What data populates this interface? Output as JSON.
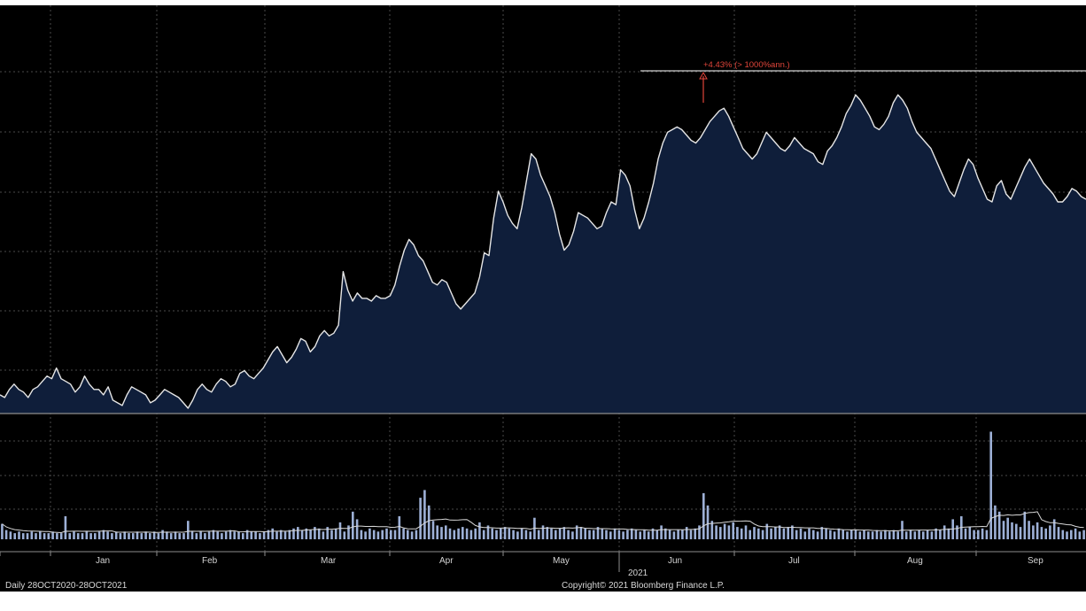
{
  "chart_data": {
    "type": "line",
    "period": "Daily 28OCT2020-28OCT2021",
    "copyright": "Copyright© 2021 Bloomberg Finance L.P.",
    "year_label": "2021",
    "month_ticks": [
      "Jan",
      "Feb",
      "Mar",
      "Apr",
      "May",
      "Jun",
      "Jul",
      "Aug",
      "Sep"
    ],
    "annotation": "+4.43% (> 1000%ann.)",
    "grid": true,
    "colors": {
      "background": "#000000",
      "area_fill": "#0f1e3a",
      "line": "#e6e6e6",
      "volume_bar": "#9db0d6",
      "annotation": "#e0453a",
      "grid": "#4a4a4a"
    },
    "price_series": [
      0.06,
      0.05,
      0.08,
      0.1,
      0.08,
      0.07,
      0.05,
      0.08,
      0.09,
      0.11,
      0.13,
      0.12,
      0.16,
      0.12,
      0.11,
      0.1,
      0.07,
      0.09,
      0.13,
      0.1,
      0.08,
      0.08,
      0.06,
      0.09,
      0.04,
      0.03,
      0.02,
      0.06,
      0.09,
      0.08,
      0.07,
      0.06,
      0.03,
      0.04,
      0.06,
      0.08,
      0.07,
      0.06,
      0.05,
      0.03,
      0.01,
      0.04,
      0.08,
      0.1,
      0.08,
      0.07,
      0.1,
      0.12,
      0.11,
      0.09,
      0.1,
      0.14,
      0.15,
      0.13,
      0.12,
      0.14,
      0.16,
      0.19,
      0.22,
      0.24,
      0.21,
      0.18,
      0.2,
      0.23,
      0.27,
      0.26,
      0.22,
      0.24,
      0.28,
      0.3,
      0.28,
      0.29,
      0.32,
      0.52,
      0.45,
      0.41,
      0.44,
      0.42,
      0.42,
      0.41,
      0.43,
      0.42,
      0.42,
      0.43,
      0.47,
      0.54,
      0.6,
      0.64,
      0.62,
      0.58,
      0.56,
      0.52,
      0.48,
      0.47,
      0.49,
      0.48,
      0.44,
      0.4,
      0.38,
      0.4,
      0.42,
      0.44,
      0.5,
      0.59,
      0.58,
      0.72,
      0.82,
      0.78,
      0.73,
      0.7,
      0.68,
      0.76,
      0.86,
      0.96,
      0.94,
      0.88,
      0.84,
      0.8,
      0.74,
      0.66,
      0.6,
      0.62,
      0.67,
      0.74,
      0.73,
      0.72,
      0.7,
      0.68,
      0.69,
      0.74,
      0.78,
      0.77,
      0.9,
      0.88,
      0.84,
      0.75,
      0.68,
      0.72,
      0.78,
      0.85,
      0.94,
      1.0,
      1.04,
      1.05,
      1.06,
      1.05,
      1.03,
      1.01,
      1.0,
      1.02,
      1.05,
      1.08,
      1.1,
      1.12,
      1.13,
      1.1,
      1.06,
      1.02,
      0.98,
      0.96,
      0.94,
      0.96,
      1.0,
      1.04,
      1.02,
      1.0,
      0.98,
      0.97,
      0.99,
      1.02,
      1.0,
      0.98,
      0.97,
      0.96,
      0.93,
      0.92,
      0.97,
      0.99,
      1.02,
      1.06,
      1.11,
      1.14,
      1.18,
      1.16,
      1.13,
      1.1,
      1.06,
      1.05,
      1.07,
      1.1,
      1.15,
      1.18,
      1.16,
      1.13,
      1.08,
      1.04,
      1.02,
      1.0,
      0.98,
      0.94,
      0.9,
      0.86,
      0.82,
      0.8,
      0.85,
      0.9,
      0.94,
      0.92,
      0.87,
      0.83,
      0.79,
      0.78,
      0.84,
      0.86,
      0.81,
      0.79,
      0.83,
      0.87,
      0.91,
      0.94,
      0.91,
      0.88,
      0.85,
      0.83,
      0.81,
      0.78,
      0.78,
      0.8,
      0.83,
      0.82,
      0.8,
      0.79
    ],
    "volume_series": [
      0.1,
      0.06,
      0.05,
      0.04,
      0.05,
      0.04,
      0.04,
      0.05,
      0.04,
      0.05,
      0.04,
      0.04,
      0.05,
      0.04,
      0.04,
      0.15,
      0.04,
      0.05,
      0.04,
      0.04,
      0.05,
      0.04,
      0.04,
      0.05,
      0.06,
      0.05,
      0.04,
      0.05,
      0.04,
      0.05,
      0.04,
      0.04,
      0.05,
      0.04,
      0.05,
      0.04,
      0.05,
      0.04,
      0.06,
      0.05,
      0.04,
      0.05,
      0.04,
      0.04,
      0.12,
      0.05,
      0.04,
      0.05,
      0.04,
      0.05,
      0.06,
      0.05,
      0.04,
      0.05,
      0.06,
      0.05,
      0.05,
      0.04,
      0.06,
      0.05,
      0.05,
      0.04,
      0.05,
      0.06,
      0.07,
      0.05,
      0.06,
      0.05,
      0.06,
      0.07,
      0.08,
      0.06,
      0.07,
      0.06,
      0.08,
      0.07,
      0.05,
      0.08,
      0.06,
      0.07,
      0.11,
      0.05,
      0.09,
      0.18,
      0.13,
      0.06,
      0.05,
      0.07,
      0.06,
      0.05,
      0.06,
      0.07,
      0.06,
      0.06,
      0.15,
      0.07,
      0.06,
      0.05,
      0.06,
      0.27,
      0.32,
      0.22,
      0.12,
      0.09,
      0.08,
      0.09,
      0.07,
      0.06,
      0.07,
      0.08,
      0.07,
      0.06,
      0.07,
      0.11,
      0.06,
      0.09,
      0.07,
      0.06,
      0.07,
      0.08,
      0.07,
      0.06,
      0.05,
      0.07,
      0.06,
      0.05,
      0.14,
      0.06,
      0.09,
      0.08,
      0.07,
      0.06,
      0.07,
      0.08,
      0.06,
      0.05,
      0.09,
      0.08,
      0.07,
      0.06,
      0.06,
      0.08,
      0.07,
      0.06,
      0.05,
      0.07,
      0.06,
      0.05,
      0.06,
      0.07,
      0.06,
      0.05,
      0.06,
      0.05,
      0.07,
      0.06,
      0.09,
      0.07,
      0.06,
      0.05,
      0.06,
      0.06,
      0.08,
      0.06,
      0.07,
      0.09,
      0.3,
      0.22,
      0.12,
      0.09,
      0.08,
      0.1,
      0.09,
      0.11,
      0.08,
      0.07,
      0.09,
      0.06,
      0.08,
      0.07,
      0.06,
      0.1,
      0.07,
      0.08,
      0.09,
      0.07,
      0.08,
      0.09,
      0.06,
      0.07,
      0.05,
      0.07,
      0.06,
      0.05,
      0.08,
      0.07,
      0.06,
      0.05,
      0.07,
      0.06,
      0.05,
      0.06,
      0.06,
      0.05,
      0.06,
      0.05,
      0.05,
      0.06,
      0.05,
      0.06,
      0.05,
      0.06,
      0.05,
      0.12,
      0.05,
      0.06,
      0.05,
      0.06,
      0.05,
      0.06,
      0.05,
      0.07,
      0.06,
      0.09,
      0.07,
      0.13,
      0.09,
      0.15,
      0.07,
      0.08,
      0.06,
      0.06,
      0.07,
      0.06,
      0.7,
      0.22,
      0.18,
      0.12,
      0.14,
      0.11,
      0.1,
      0.08,
      0.18,
      0.12,
      0.09,
      0.11,
      0.08,
      0.07,
      0.09,
      0.13,
      0.08,
      0.06,
      0.05,
      0.06,
      0.07,
      0.05,
      0.06
    ]
  }
}
